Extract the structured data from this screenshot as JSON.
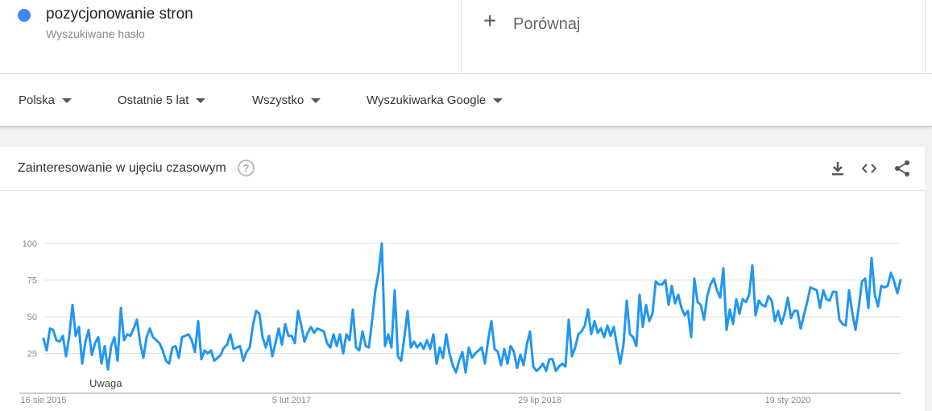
{
  "search_term": {
    "name": "pozycjonowanie stron",
    "subtitle": "Wyszukiwane hasło",
    "color": "#4285f4"
  },
  "compare": {
    "label": "Porównaj",
    "icon": "plus-icon"
  },
  "filters": [
    {
      "label": "Polska"
    },
    {
      "label": "Ostatnie 5 lat"
    },
    {
      "label": "Wszystko"
    },
    {
      "label": "Wyszukiwarka Google"
    }
  ],
  "card": {
    "title": "Zainteresowanie w ujęciu czasowym",
    "help_icon": "question-icon",
    "tools": [
      "download-icon",
      "embed-code-icon",
      "share-icon"
    ],
    "note": "Uwaga"
  },
  "chart_data": {
    "type": "line",
    "title": "",
    "xlabel": "",
    "ylabel": "",
    "ylim": [
      0,
      100
    ],
    "yticks": [
      25,
      50,
      75,
      100
    ],
    "x_tick_labels": [
      "16 sie 2015",
      "5 lut 2017",
      "29 lip 2018",
      "19 sty 2020"
    ],
    "x_tick_index": [
      0,
      77,
      154,
      231
    ],
    "grid": true,
    "series": [
      {
        "color": "#2196f3",
        "values": [
          35,
          27,
          42,
          41,
          34,
          33,
          37,
          23,
          37,
          58,
          37,
          43,
          18,
          33,
          41,
          24,
          32,
          36,
          18,
          30,
          14,
          30,
          36,
          20,
          56,
          34,
          38,
          37,
          42,
          48,
          32,
          22,
          36,
          42,
          36,
          34,
          32,
          27,
          20,
          18,
          29,
          30,
          22,
          36,
          37,
          38,
          34,
          26,
          47,
          21,
          27,
          25,
          27,
          20,
          22,
          24,
          29,
          31,
          38,
          28,
          29,
          30,
          20,
          26,
          29,
          44,
          54,
          52,
          36,
          29,
          37,
          23,
          32,
          42,
          31,
          45,
          37,
          37,
          32,
          54,
          44,
          33,
          39,
          43,
          39,
          42,
          41,
          40,
          32,
          29,
          38,
          30,
          38,
          25,
          38,
          34,
          55,
          29,
          27,
          40,
          30,
          29,
          48,
          68,
          80,
          100,
          30,
          38,
          29,
          68,
          23,
          20,
          36,
          54,
          29,
          33,
          29,
          32,
          28,
          34,
          28,
          38,
          18,
          29,
          22,
          38,
          25,
          17,
          12,
          20,
          26,
          12,
          29,
          22,
          25,
          27,
          29,
          18,
          34,
          47,
          28,
          26,
          17,
          28,
          18,
          30,
          26,
          15,
          24,
          17,
          31,
          40,
          16,
          13,
          15,
          18,
          13,
          21,
          21,
          13,
          16,
          18,
          16,
          48,
          23,
          29,
          38,
          40,
          44,
          55,
          38,
          47,
          39,
          42,
          36,
          44,
          37,
          43,
          30,
          18,
          31,
          61,
          38,
          36,
          30,
          65,
          43,
          58,
          47,
          52,
          74,
          72,
          72,
          75,
          58,
          71,
          59,
          65,
          56,
          51,
          54,
          36,
          76,
          60,
          58,
          48,
          64,
          72,
          76,
          68,
          63,
          83,
          41,
          55,
          45,
          62,
          52,
          62,
          60,
          65,
          85,
          51,
          61,
          58,
          57,
          64,
          61,
          47,
          54,
          45,
          52,
          63,
          49,
          54,
          54,
          42,
          51,
          60,
          70,
          69,
          68,
          56,
          68,
          62,
          61,
          67,
          67,
          48,
          45,
          44,
          68,
          53,
          41,
          56,
          74,
          76,
          56,
          90,
          65,
          57,
          71,
          70,
          71,
          80,
          74,
          66,
          75
        ]
      }
    ]
  }
}
